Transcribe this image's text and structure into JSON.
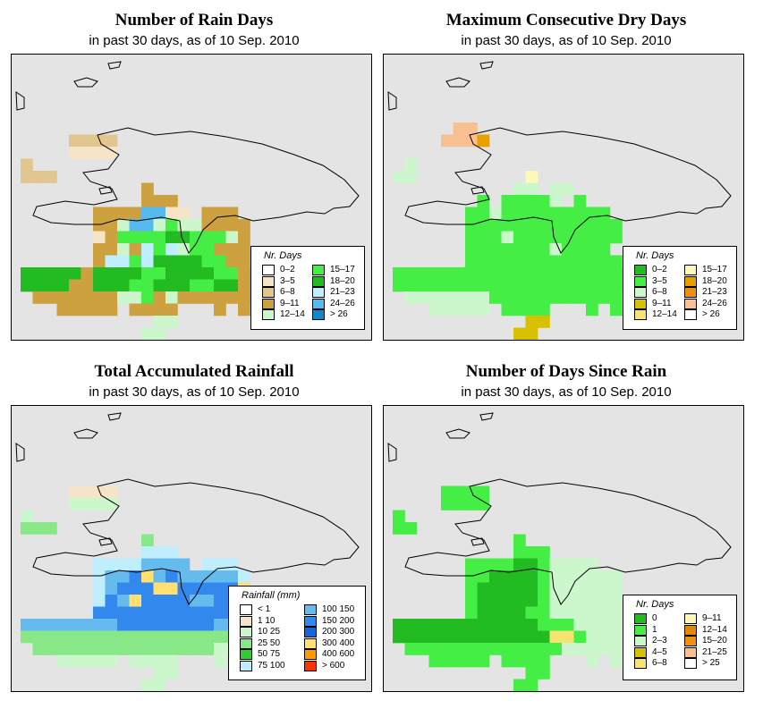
{
  "panels": [
    {
      "title": "Number of Rain Days",
      "subtitle": "in past 30 days, as of  10 Sep. 2010",
      "legend": {
        "title": "Nr. Days",
        "items": [
          {
            "label": "0–2",
            "color": "#ffffff"
          },
          {
            "label": "3–5",
            "color": "#f5e4c8"
          },
          {
            "label": "6–8",
            "color": "#e2c690"
          },
          {
            "label": "9–11",
            "color": "#cda040"
          },
          {
            "label": "12–14",
            "color": "#ccf7cc"
          },
          {
            "label": "15–17",
            "color": "#44ee44"
          },
          {
            "label": "18–20",
            "color": "#22bb22"
          },
          {
            "label": "21–23",
            "color": "#bfeeff"
          },
          {
            "label": "24–26",
            "color": "#55bbee"
          },
          {
            "label": "> 26",
            "color": "#1188cc"
          }
        ]
      }
    },
    {
      "title": "Maximum Consecutive Dry Days",
      "subtitle": "in past 30 days, as of  10 Sep. 2010",
      "legend": {
        "title": "Nr. Days",
        "items": [
          {
            "label": "0–2",
            "color": "#22bb22"
          },
          {
            "label": "3–5",
            "color": "#44ee44"
          },
          {
            "label": "6–8",
            "color": "#ccf7cc"
          },
          {
            "label": "9–11",
            "color": "#d6c000"
          },
          {
            "label": "12–14",
            "color": "#f5e470"
          },
          {
            "label": "15–17",
            "color": "#fff8bb"
          },
          {
            "label": "18–20",
            "color": "#e8a000"
          },
          {
            "label": "21–23",
            "color": "#f09010"
          },
          {
            "label": "24–26",
            "color": "#f8c090"
          },
          {
            "label": "> 26",
            "color": "#ffffff"
          }
        ]
      }
    },
    {
      "title": "Total Accumulated Rainfall",
      "subtitle": "in past 30 days, as of  10 Sep. 2010",
      "legend": {
        "title": "Rainfall (mm)",
        "items": [
          {
            "label": "< 1",
            "color": "#ffffff"
          },
          {
            "label": "1   10",
            "color": "#f5e4c8"
          },
          {
            "label": "10   25",
            "color": "#ccf7cc"
          },
          {
            "label": "25   50",
            "color": "#88e888"
          },
          {
            "label": "50   75",
            "color": "#33cc33"
          },
          {
            "label": "75   100",
            "color": "#bfeeff"
          },
          {
            "label": "100  150",
            "color": "#66bbee"
          },
          {
            "label": "150  200",
            "color": "#3388ee"
          },
          {
            "label": "200  300",
            "color": "#1166dd"
          },
          {
            "label": "300  400",
            "color": "#ffe070"
          },
          {
            "label": "400  600",
            "color": "#ff9900"
          },
          {
            "label": "> 600",
            "color": "#ff3300"
          }
        ]
      }
    },
    {
      "title": "Number of Days Since Rain",
      "subtitle": "in past 30 days, as of  10 Sep. 2010",
      "legend": {
        "title": "Nr. Days",
        "items": [
          {
            "label": "0",
            "color": "#22bb22"
          },
          {
            "label": "1",
            "color": "#44ee44"
          },
          {
            "label": "2–3",
            "color": "#ccf7cc"
          },
          {
            "label": "4–5",
            "color": "#d6c000"
          },
          {
            "label": "6–8",
            "color": "#f5e470"
          },
          {
            "label": "9–11",
            "color": "#fff8bb"
          },
          {
            "label": "12–14",
            "color": "#e08800"
          },
          {
            "label": "15–20",
            "color": "#f09010"
          },
          {
            "label": "21–25",
            "color": "#f8c090"
          },
          {
            "label": "> 25",
            "color": "#ffffff"
          }
        ]
      }
    }
  ]
}
